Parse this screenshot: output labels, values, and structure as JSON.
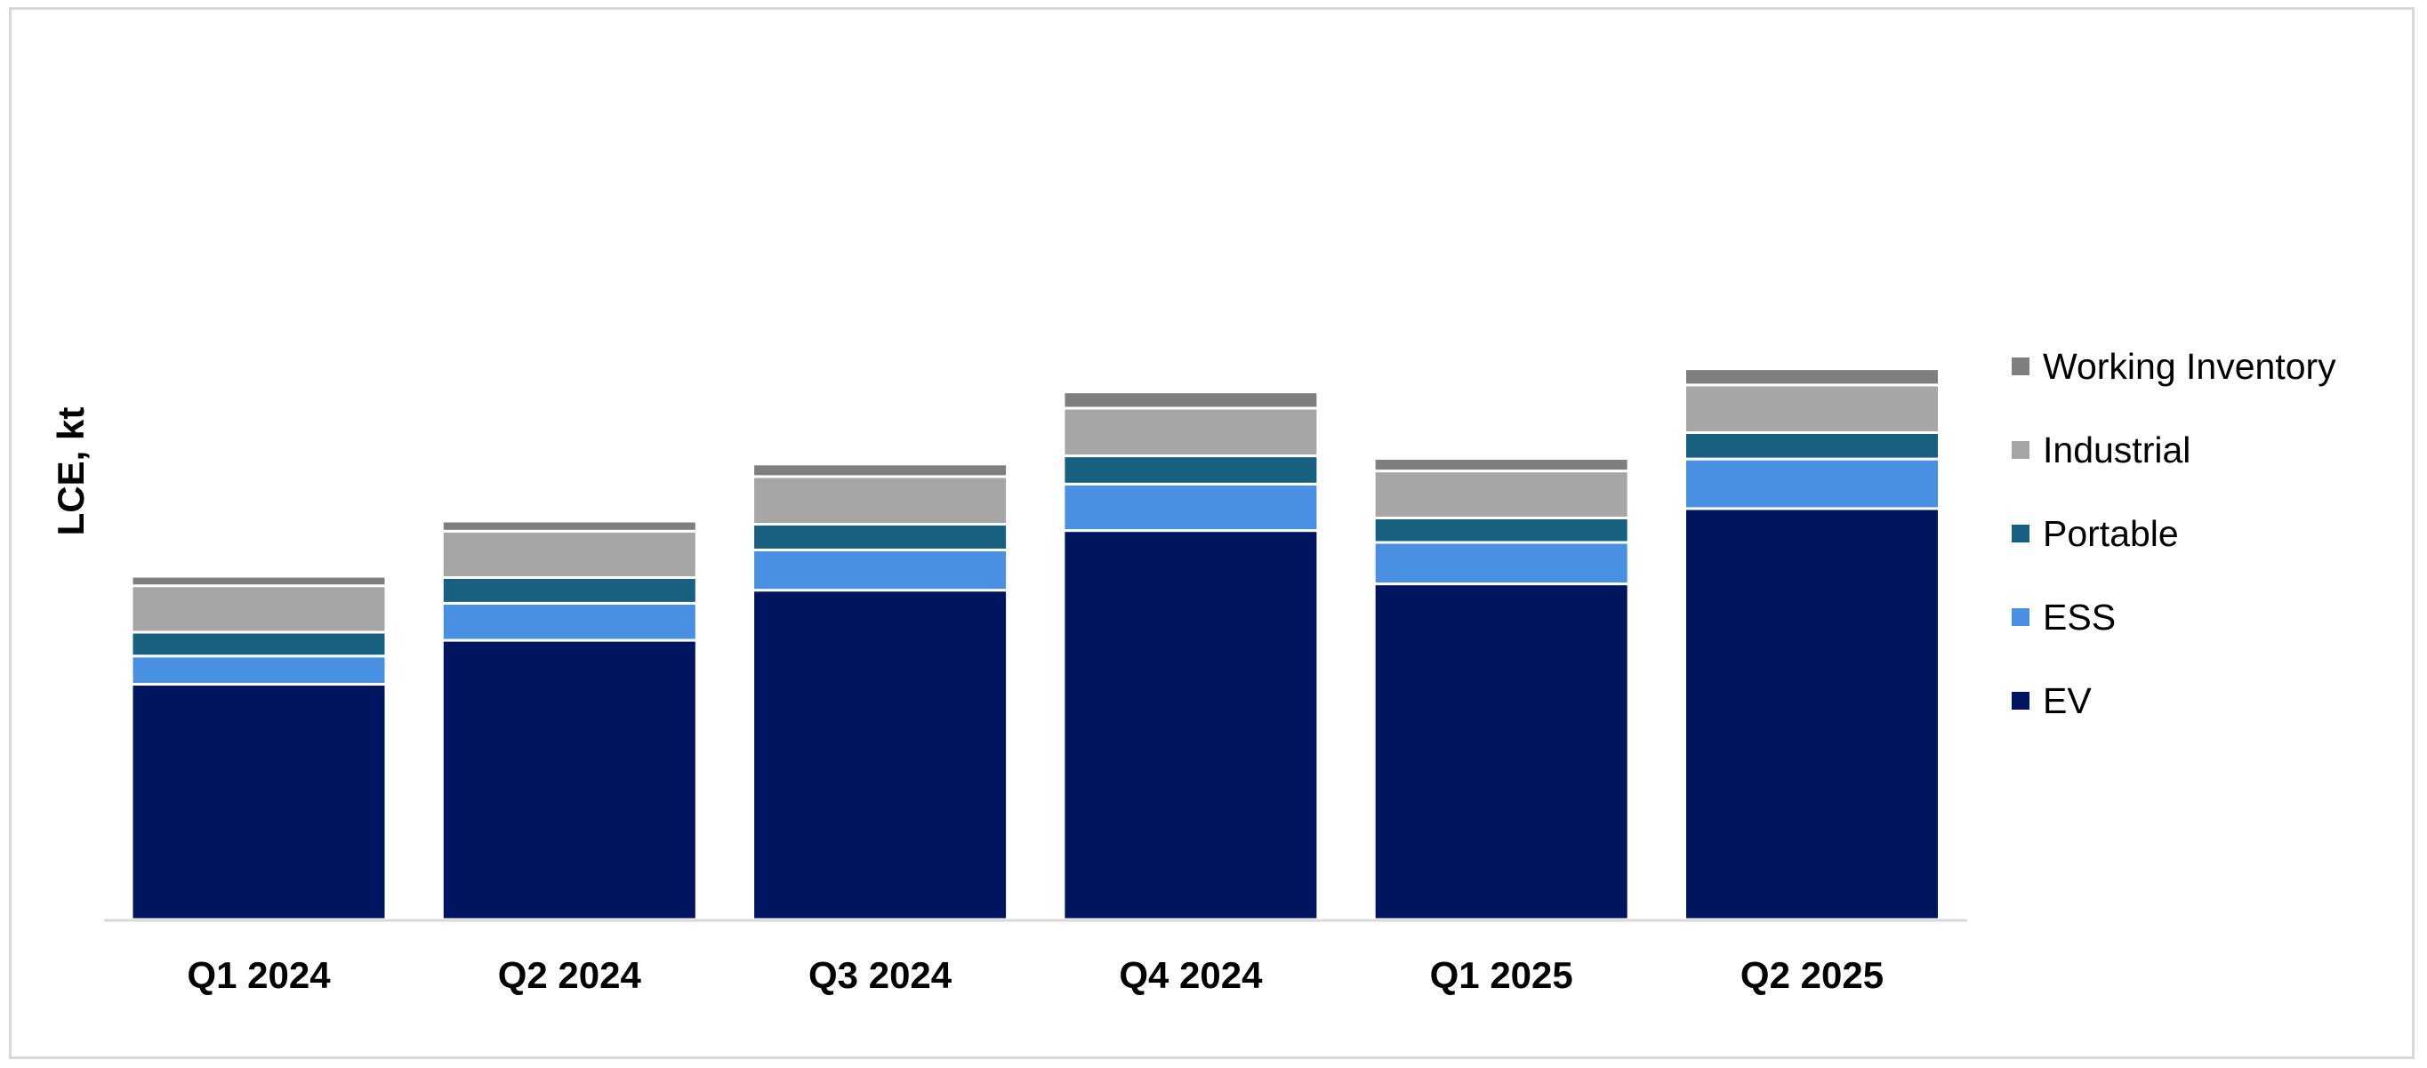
{
  "chart_data": {
    "type": "bar",
    "stacked": true,
    "ylabel": "LCE, kt",
    "xlabel": "",
    "categories": [
      "Q1 2024",
      "Q2 2024",
      "Q3 2024",
      "Q4 2024",
      "Q1 2025",
      "Q2 2025"
    ],
    "series": [
      {
        "name": "EV",
        "color": "#001560",
        "values": [
          37.5,
          44.5,
          52.5,
          62.0,
          53.5,
          65.5
        ]
      },
      {
        "name": "ESS",
        "color": "#4a90e2",
        "values": [
          4.5,
          5.9,
          6.4,
          7.4,
          6.6,
          7.9
        ]
      },
      {
        "name": "Portable",
        "color": "#17607f",
        "values": [
          3.8,
          4.1,
          4.1,
          4.5,
          3.9,
          4.2
        ]
      },
      {
        "name": "Industrial",
        "color": "#a6a6a6",
        "values": [
          7.4,
          7.4,
          7.6,
          7.6,
          7.5,
          7.6
        ]
      },
      {
        "name": "Working Inventory",
        "color": "#7f7f7f",
        "values": [
          1.5,
          1.6,
          2.0,
          2.6,
          2.0,
          2.6
        ]
      }
    ],
    "legend_position": "right",
    "grid": false,
    "axis_color": "#d9d9d9"
  }
}
